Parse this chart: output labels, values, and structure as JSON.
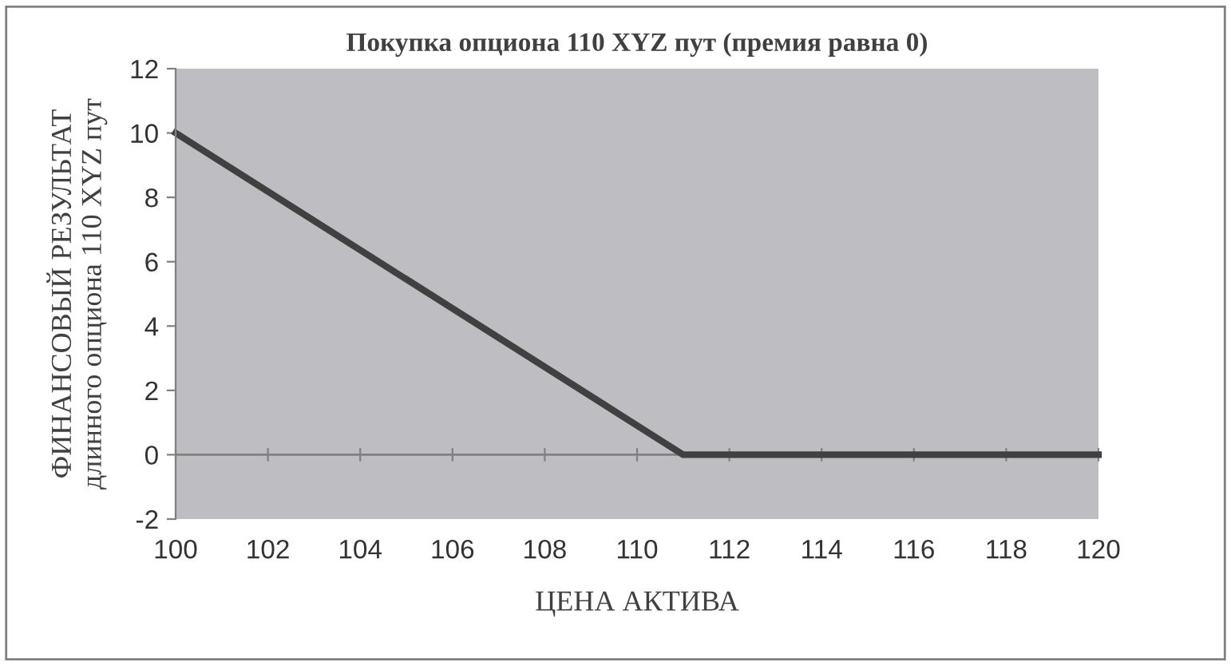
{
  "chart_data": {
    "type": "line",
    "title": "Покупка опциона 110 XYZ пут (премия равна 0)",
    "xlabel": "ЦЕНА АКТИВА",
    "ylabel": "ФИНАНСОВЫЙ РЕЗУЛЬТАТ\nдлинного опциона 110 XYZ пут",
    "x": [
      100,
      111,
      120
    ],
    "values": [
      10,
      0,
      0
    ],
    "color": "#404040",
    "xlim": [
      100,
      120
    ],
    "xticks": [
      100,
      102,
      104,
      106,
      108,
      110,
      112,
      114,
      116,
      118,
      120
    ],
    "ylim": [
      -2,
      12
    ],
    "yticks": [
      -2,
      0,
      2,
      4,
      6,
      8,
      10,
      12
    ],
    "grid": false,
    "ref_lines": [
      {
        "axis": "y",
        "value": 0,
        "color": "#808080"
      }
    ],
    "legend": false,
    "marker": "none",
    "line_style": "solid"
  }
}
